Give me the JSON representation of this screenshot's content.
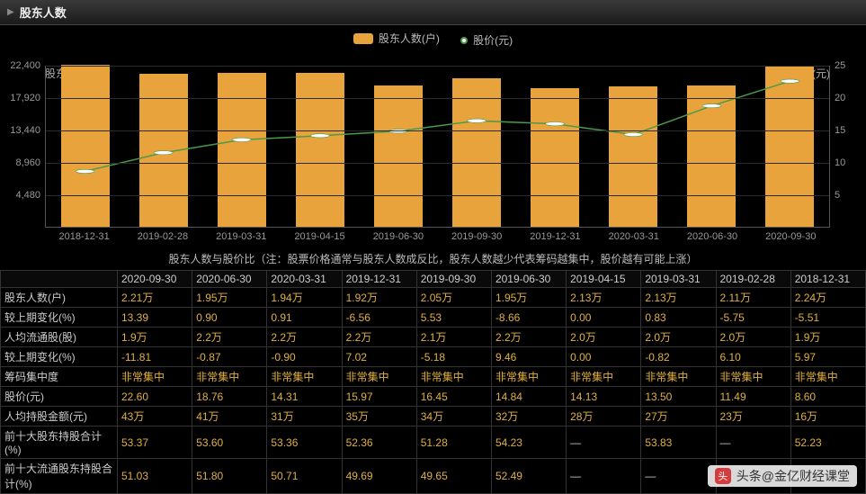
{
  "header": {
    "title": "股东人数"
  },
  "legend": {
    "bar_label": "股东人数(户)",
    "line_label": "股价(元)",
    "bar_color": "#e8a33d",
    "line_color": "#4a9a4a",
    "point_fill": "#ffffff"
  },
  "chart": {
    "type": "bar+line",
    "left_axis_title": "股东人数(户)",
    "right_axis_title": "股价(元)",
    "background_color": "#000000",
    "grid_color": "#2a2a2a",
    "axis_color": "#555555",
    "label_color": "#999999",
    "label_fontsize": 11,
    "left_ylim": [
      0,
      22400
    ],
    "left_ticks": [
      0,
      4480,
      8960,
      13440,
      17920,
      22400
    ],
    "left_tick_labels": [
      "",
      "4,480",
      "8,960",
      "13,440",
      "17,920",
      "22,400"
    ],
    "right_ylim": [
      0,
      25
    ],
    "right_ticks": [
      0,
      5,
      10,
      15,
      20,
      25
    ],
    "right_tick_labels": [
      "",
      "5",
      "10",
      "15",
      "20",
      "25"
    ],
    "categories": [
      "2018-12-31",
      "2019-02-28",
      "2019-03-31",
      "2019-04-15",
      "2019-06-30",
      "2019-09-30",
      "2019-12-31",
      "2020-03-31",
      "2020-06-30",
      "2020-09-30"
    ],
    "bar_values": [
      22400,
      21100,
      21300,
      21300,
      19500,
      20500,
      19200,
      19400,
      19500,
      22100
    ],
    "bar_color": "#e8a33d",
    "bar_width": 0.62,
    "line_values": [
      8.6,
      11.49,
      13.5,
      14.13,
      14.84,
      16.45,
      15.97,
      14.31,
      18.76,
      22.6
    ],
    "line_color": "#4a9a4a",
    "line_width": 1.5,
    "point_radius": 3,
    "point_fill": "#ffffff",
    "point_stroke": "#4a9a4a"
  },
  "subtitle": "股东人数与股价比（注：股票价格通常与股东人数成反比，股东人数越少代表筹码越集中，股价越有可能上涨）",
  "table": {
    "header_color": "#cccccc",
    "row_head_color": "#cccccc",
    "value_color": "#e0b040",
    "border_color": "#333333",
    "columns": [
      "",
      "2020-09-30",
      "2020-06-30",
      "2020-03-31",
      "2019-12-31",
      "2019-09-30",
      "2019-06-30",
      "2019-04-15",
      "2019-03-31",
      "2019-02-28",
      "2018-12-31"
    ],
    "rows": [
      {
        "label": "股东人数(户)",
        "values": [
          "2.21万",
          "1.95万",
          "1.94万",
          "1.92万",
          "2.05万",
          "1.95万",
          "2.13万",
          "2.13万",
          "2.11万",
          "2.24万"
        ]
      },
      {
        "label": "较上期变化(%)",
        "values": [
          "13.39",
          "0.90",
          "0.91",
          "-6.56",
          "5.53",
          "-8.66",
          "0.00",
          "0.83",
          "-5.75",
          "-5.51"
        ]
      },
      {
        "label": "人均流通股(股)",
        "values": [
          "1.9万",
          "2.2万",
          "2.2万",
          "2.2万",
          "2.1万",
          "2.2万",
          "2.0万",
          "2.0万",
          "2.0万",
          "1.9万"
        ]
      },
      {
        "label": "较上期变化(%)",
        "values": [
          "-11.81",
          "-0.87",
          "-0.90",
          "7.02",
          "-5.18",
          "9.46",
          "0.00",
          "-0.82",
          "6.10",
          "5.97"
        ]
      },
      {
        "label": "筹码集中度",
        "values": [
          "非常集中",
          "非常集中",
          "非常集中",
          "非常集中",
          "非常集中",
          "非常集中",
          "非常集中",
          "非常集中",
          "非常集中",
          "非常集中"
        ]
      },
      {
        "label": "股价(元)",
        "values": [
          "22.60",
          "18.76",
          "14.31",
          "15.97",
          "16.45",
          "14.84",
          "14.13",
          "13.50",
          "11.49",
          "8.60"
        ]
      },
      {
        "label": "人均持股金额(元)",
        "values": [
          "43万",
          "41万",
          "31万",
          "35万",
          "34万",
          "32万",
          "28万",
          "27万",
          "23万",
          "16万"
        ]
      },
      {
        "label": "前十大股东持股合计(%)",
        "values": [
          "53.37",
          "53.60",
          "53.36",
          "52.36",
          "51.28",
          "54.23",
          "—",
          "53.83",
          "—",
          "52.23"
        ]
      },
      {
        "label": "前十大流通股东持股合计(%)",
        "values": [
          "51.03",
          "51.80",
          "50.71",
          "49.69",
          "49.65",
          "52.49",
          "—",
          "—",
          "—",
          "—"
        ]
      }
    ]
  },
  "watermark": {
    "prefix": "头条",
    "text": "@金亿财经课堂"
  }
}
